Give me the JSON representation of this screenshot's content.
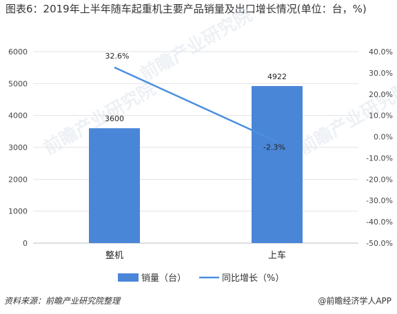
{
  "title": "图表6：2019年上半年随车起重机主要产品销量及出口增长情况(单位：台，%)",
  "source": "资料来源：前瞻产业研究院整理",
  "brand": "@前瞻经济学人APP",
  "watermark": "前瞻产业研究院",
  "colors": {
    "bar": "#4a86d8",
    "line": "#4a8fe0",
    "grid": "#e2e2e2",
    "axis": "#bdbdbd"
  },
  "chart_data": {
    "type": "bar",
    "categories": [
      "整机",
      "上车"
    ],
    "series": [
      {
        "name": "销量（台）",
        "type": "bar",
        "axis": "left",
        "values": [
          3600,
          4922
        ],
        "labels": [
          "3600",
          "4922"
        ]
      },
      {
        "name": "同比增长（%）",
        "type": "line",
        "axis": "right",
        "values": [
          32.6,
          -2.3
        ],
        "labels": [
          "32.6%",
          "-2.3%"
        ]
      }
    ],
    "y_left": {
      "min": 0,
      "max": 6000,
      "ticks": [
        0,
        1000,
        2000,
        3000,
        4000,
        5000,
        6000
      ]
    },
    "y_right": {
      "min": -50,
      "max": 40,
      "ticks": [
        "-50.0%",
        "-40.0%",
        "-30.0%",
        "-20.0%",
        "-10.0%",
        "0.0%",
        "10.0%",
        "20.0%",
        "30.0%",
        "40.0%"
      ],
      "tick_values": [
        -50,
        -40,
        -30,
        -20,
        -10,
        0,
        10,
        20,
        30,
        40
      ]
    },
    "grid": true,
    "legend_position": "bottom"
  }
}
